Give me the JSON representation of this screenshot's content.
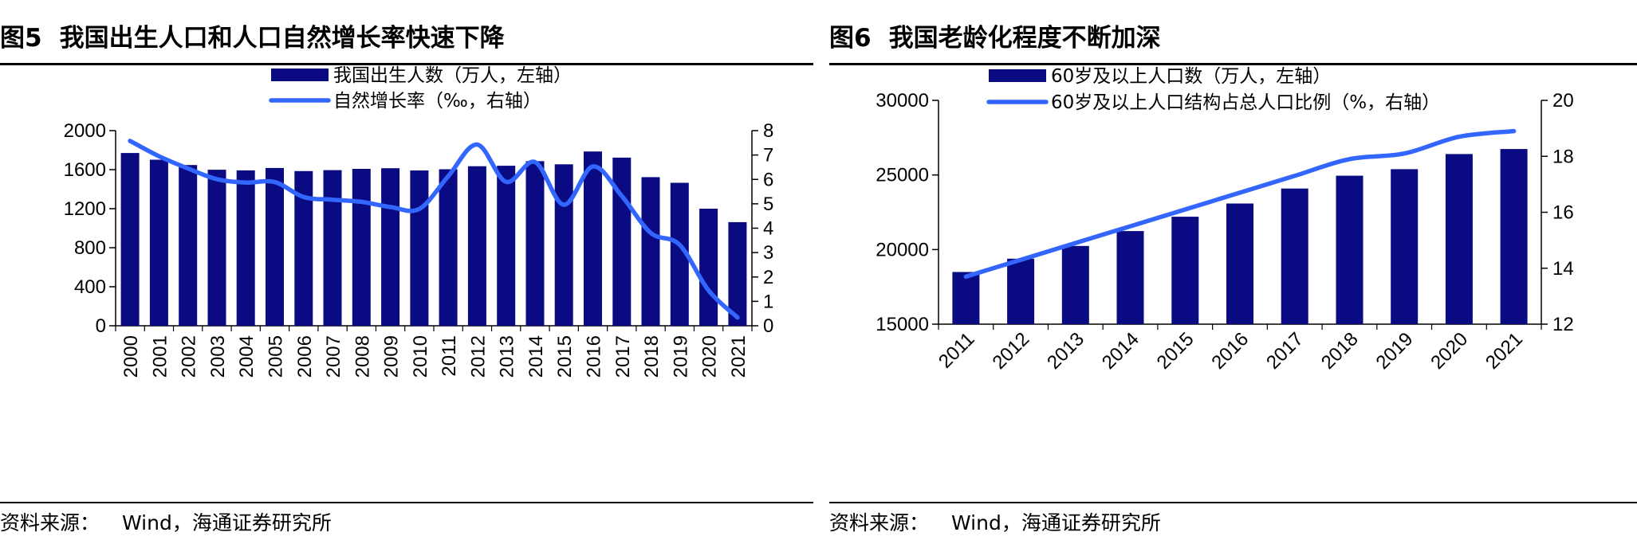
{
  "left": {
    "title_num": "图5",
    "title_text": "我国出生人口和人口自然增长率快速下降",
    "source_label": "资料来源：",
    "source_text": "Wind，海通证券研究所",
    "chart_data": {
      "type": "bar",
      "categories": [
        "2000",
        "2001",
        "2002",
        "2003",
        "2004",
        "2005",
        "2006",
        "2007",
        "2008",
        "2009",
        "2010",
        "2011",
        "2012",
        "2013",
        "2014",
        "2015",
        "2016",
        "2017",
        "2018",
        "2019",
        "2020",
        "2021"
      ],
      "series": [
        {
          "name": "我国出生人数（万人，左轴）",
          "kind": "bar",
          "axis": "left",
          "values": [
            1771,
            1702,
            1647,
            1599,
            1593,
            1617,
            1585,
            1595,
            1608,
            1615,
            1592,
            1604,
            1635,
            1640,
            1687,
            1655,
            1786,
            1723,
            1523,
            1465,
            1200,
            1062
          ]
        },
        {
          "name": "自然增长率（‰，右轴）",
          "kind": "line",
          "axis": "right",
          "values": [
            7.58,
            6.95,
            6.45,
            6.01,
            5.87,
            5.89,
            5.28,
            5.17,
            5.08,
            4.87,
            4.79,
            6.13,
            7.43,
            5.9,
            6.71,
            4.96,
            6.53,
            5.32,
            3.81,
            3.32,
            1.45,
            0.34
          ]
        }
      ],
      "ylim_left": [
        0,
        2000
      ],
      "yticks_left": [
        "0",
        "400",
        "800",
        "1200",
        "1600",
        "2000"
      ],
      "ylim_right": [
        0,
        8
      ],
      "yticks_right": [
        "0",
        "1",
        "2",
        "3",
        "4",
        "5",
        "6",
        "7",
        "8"
      ],
      "legend": "top-center",
      "grid": false,
      "colors": {
        "bar": "#0A0A82",
        "line": "#3366FF"
      }
    }
  },
  "right": {
    "title_num": "图6",
    "title_text": "我国老龄化程度不断加深",
    "source_label": "资料来源：",
    "source_text": "Wind，海通证券研究所",
    "chart_data": {
      "type": "bar",
      "categories": [
        "2011",
        "2012",
        "2013",
        "2014",
        "2015",
        "2016",
        "2017",
        "2018",
        "2019",
        "2020",
        "2021"
      ],
      "series": [
        {
          "name": "60岁及以上人口数（万人，左轴）",
          "kind": "bar",
          "axis": "left",
          "values": [
            18499,
            19390,
            20243,
            21242,
            22200,
            23086,
            24090,
            24949,
            25388,
            26402,
            26736
          ]
        },
        {
          "name": "60岁及以上人口结构占总人口比例（%，右轴）",
          "kind": "line",
          "axis": "right",
          "values": [
            13.7,
            14.3,
            14.9,
            15.5,
            16.1,
            16.7,
            17.3,
            17.9,
            18.1,
            18.7,
            18.9
          ]
        }
      ],
      "ylim_left": [
        15000,
        30000
      ],
      "yticks_left": [
        "15000",
        "20000",
        "25000",
        "30000"
      ],
      "ylim_right": [
        12,
        20
      ],
      "yticks_right": [
        "12",
        "14",
        "16",
        "18",
        "20"
      ],
      "legend": "top-left",
      "grid": false,
      "colors": {
        "bar": "#0A0A82",
        "line": "#3366FF"
      }
    }
  }
}
